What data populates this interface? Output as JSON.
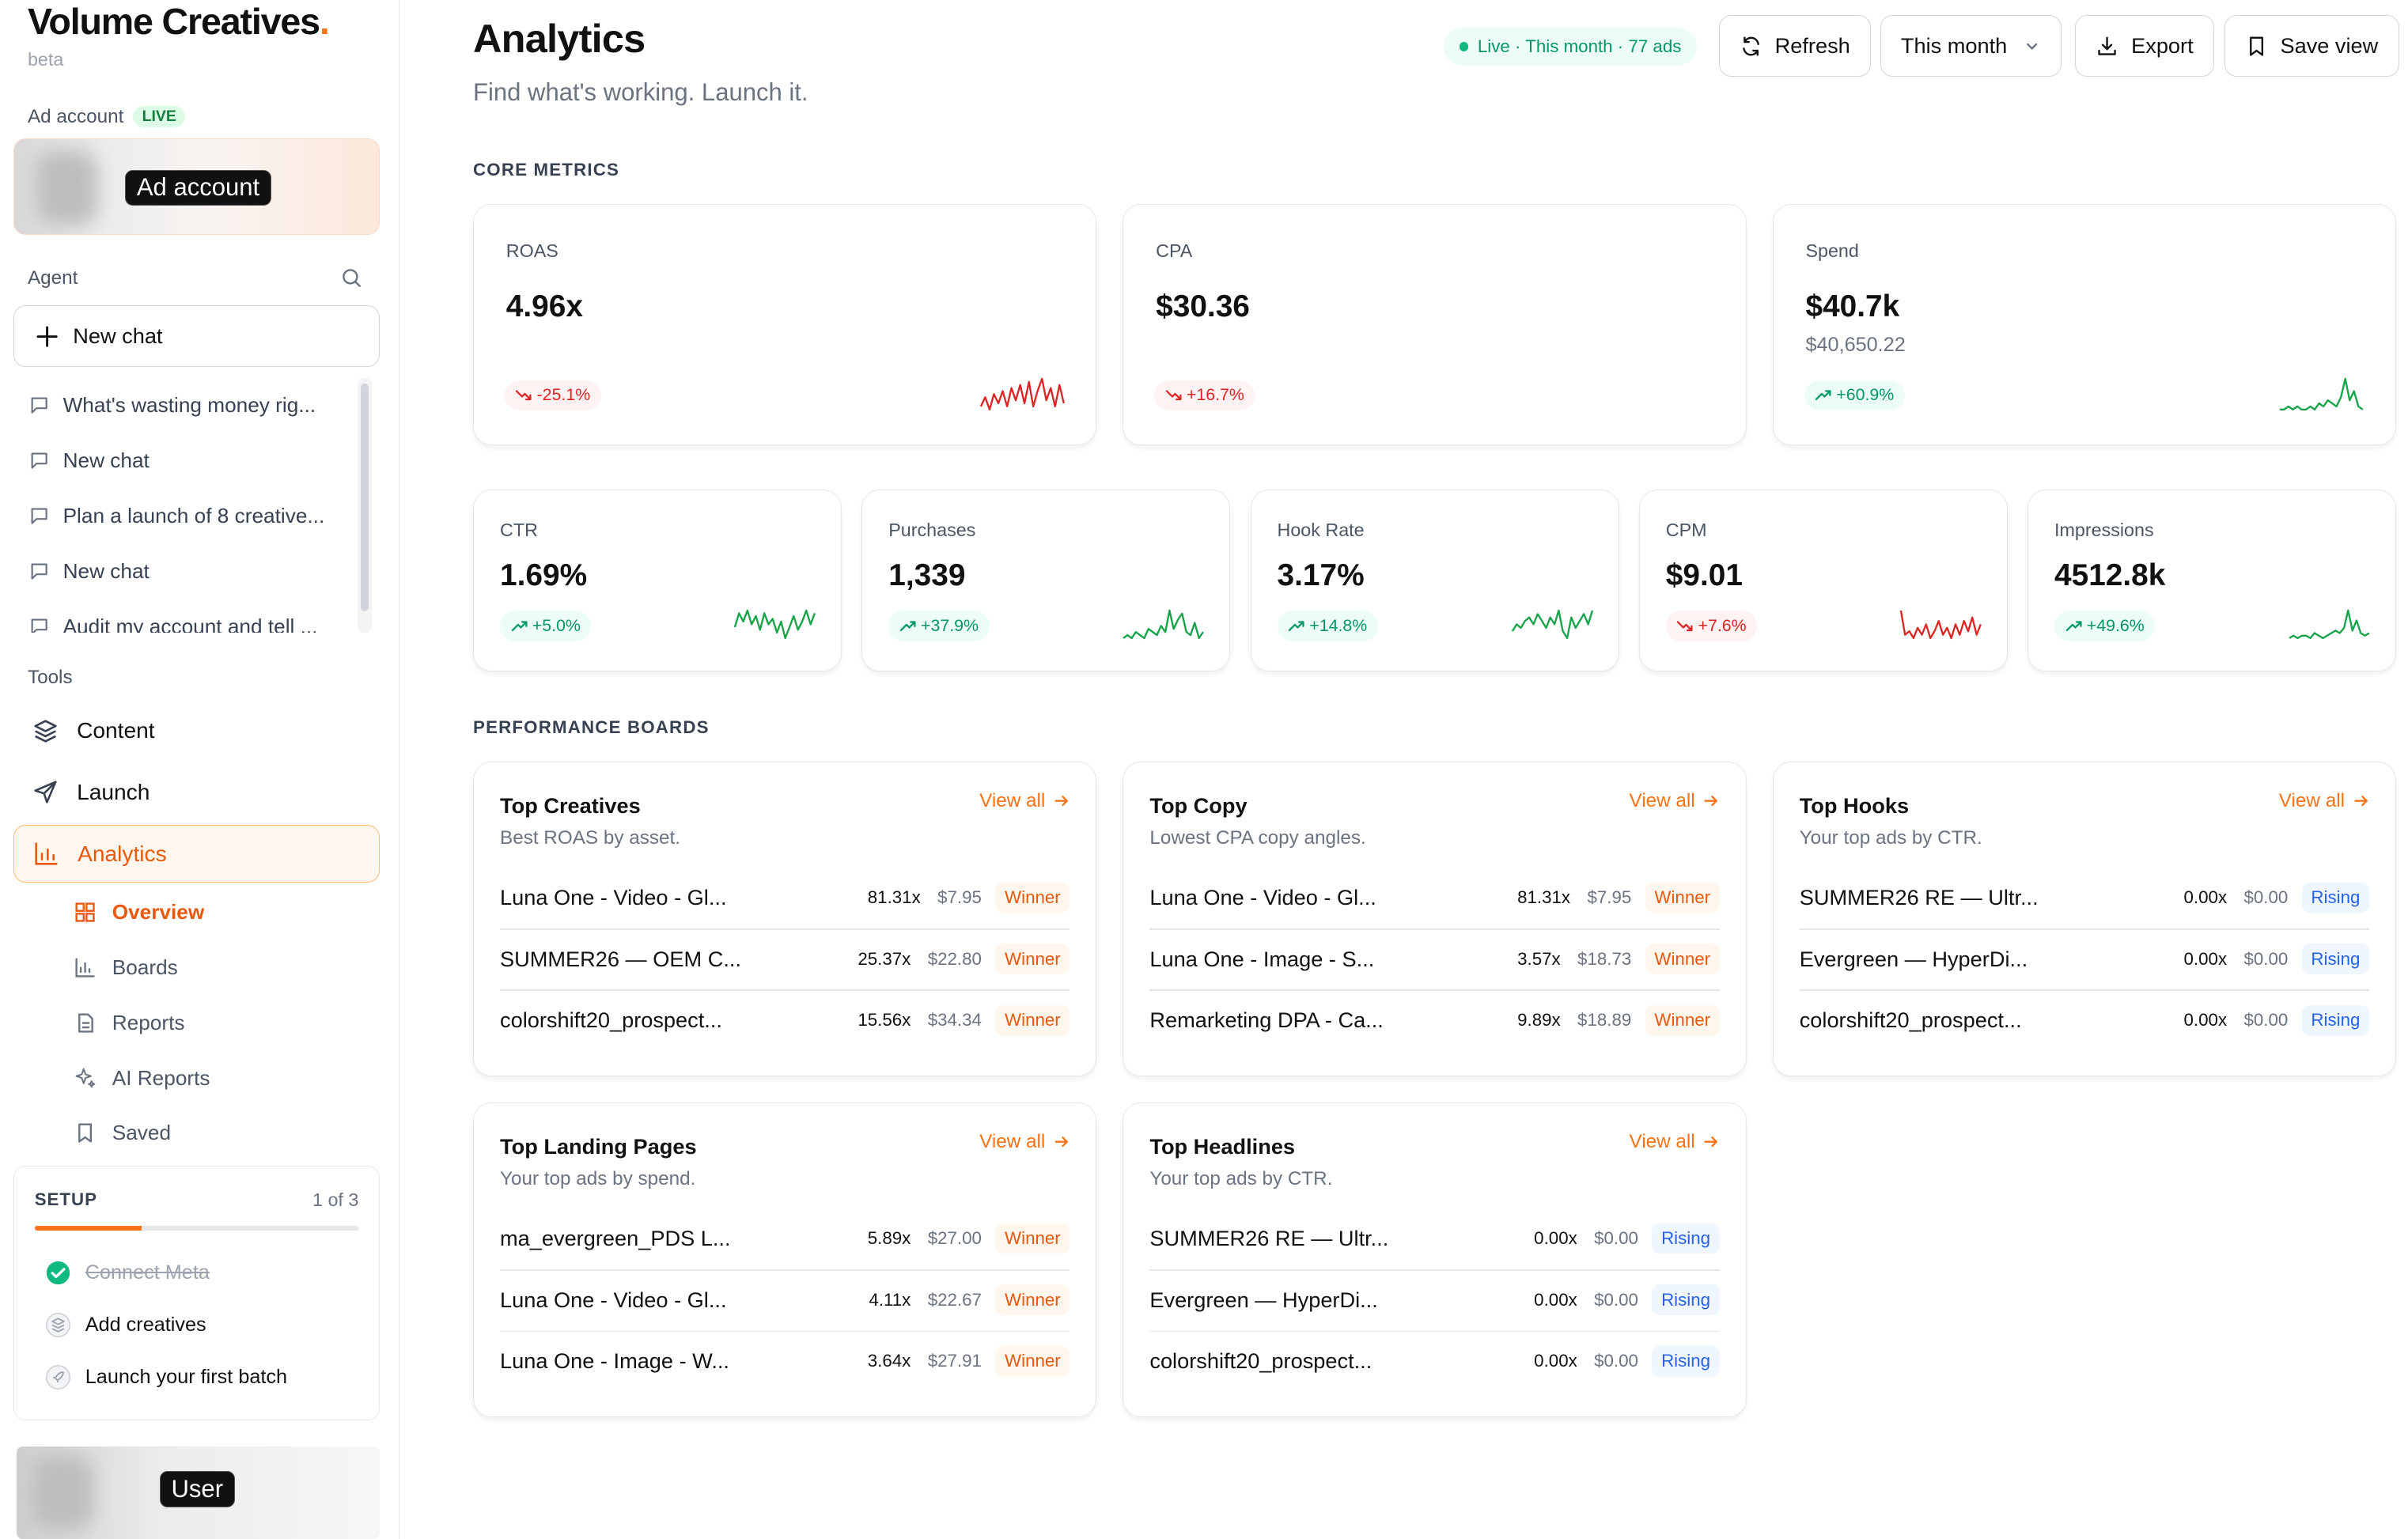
{
  "brand": {
    "name": "Volume Creatives",
    "dot": ".",
    "beta": "beta"
  },
  "sidebar": {
    "ad_account_label": "Ad account",
    "live_label": "LIVE",
    "ad_account_tag": "Ad account",
    "agent_label": "Agent",
    "new_chat": "New chat",
    "chats": [
      "What's wasting money rig...",
      "New chat",
      "Plan a launch of 8 creative...",
      "New chat",
      "Audit my account and tell ..."
    ],
    "tools_label": "Tools",
    "tools": [
      "Content",
      "Launch",
      "Analytics"
    ],
    "analytics_sub": [
      "Overview",
      "Boards",
      "Reports",
      "AI Reports",
      "Saved"
    ],
    "setup": {
      "title": "SETUP",
      "count": "1 of 3",
      "progress": 0.33,
      "steps": [
        "Connect Meta",
        "Add creatives",
        "Launch your first batch"
      ]
    },
    "user_tag": "User"
  },
  "header": {
    "title": "Analytics",
    "subtitle": "Find what's working. Launch it.",
    "live_pill": "Live · This month · 77 ads",
    "refresh": "Refresh",
    "range": "This month",
    "export": "Export",
    "save_view": "Save view"
  },
  "core_metrics_label": "CORE METRICS",
  "metrics_top": [
    {
      "label": "ROAS",
      "value": "4.96x",
      "sub": "",
      "delta": "-25.1%",
      "trend": "bad",
      "color": "#dc2626",
      "spark": [
        4,
        7,
        3,
        8,
        5,
        9,
        4,
        10,
        6,
        11,
        5,
        12,
        4,
        9,
        13,
        6,
        10,
        4,
        11,
        5
      ]
    },
    {
      "label": "CPA",
      "value": "$30.36",
      "sub": "",
      "delta": "+16.7%",
      "trend": "bad",
      "color": "#dc2626",
      "spark": []
    },
    {
      "label": "Spend",
      "value": "$40.7k",
      "sub": "$40,650.22",
      "delta": "+60.9%",
      "trend": "up",
      "color": "#16a34a",
      "spark": [
        2,
        2,
        3,
        2,
        3,
        2,
        2,
        3,
        2,
        4,
        3,
        5,
        4,
        3,
        6,
        12,
        5,
        8,
        3,
        2
      ]
    }
  ],
  "metrics_bottom": [
    {
      "label": "CTR",
      "value": "1.69%",
      "delta": "+5.0%",
      "trend": "up",
      "color": "#16a34a",
      "spark": [
        8,
        13,
        10,
        14,
        9,
        12,
        7,
        13,
        9,
        11,
        6,
        10,
        4,
        8,
        12,
        7,
        10,
        14,
        9,
        13
      ]
    },
    {
      "label": "Purchases",
      "value": "1,339",
      "delta": "+37.9%",
      "trend": "up",
      "color": "#16a34a",
      "spark": [
        3,
        4,
        3,
        5,
        4,
        3,
        6,
        5,
        4,
        7,
        5,
        12,
        6,
        9,
        11,
        5,
        4,
        8,
        3,
        5
      ]
    },
    {
      "label": "Hook Rate",
      "value": "3.17%",
      "delta": "+14.8%",
      "trend": "up",
      "color": "#16a34a",
      "spark": [
        8,
        10,
        9,
        11,
        12,
        10,
        13,
        11,
        9,
        12,
        10,
        14,
        8,
        6,
        12,
        9,
        11,
        13,
        10,
        14
      ]
    },
    {
      "label": "CPM",
      "value": "$9.01",
      "delta": "+7.6%",
      "trend": "bad",
      "color": "#dc2626",
      "spark": [
        12,
        5,
        6,
        4,
        7,
        5,
        8,
        4,
        6,
        9,
        5,
        7,
        4,
        8,
        5,
        9,
        6,
        10,
        5,
        8
      ]
    },
    {
      "label": "Impressions",
      "value": "4512.8k",
      "delta": "+49.6%",
      "trend": "up",
      "color": "#16a34a",
      "spark": [
        2,
        3,
        2,
        3,
        3,
        2,
        4,
        3,
        2,
        3,
        4,
        5,
        4,
        6,
        13,
        5,
        9,
        4,
        3,
        4
      ]
    }
  ],
  "boards_label": "PERFORMANCE BOARDS",
  "view_all": "View all",
  "boards": [
    {
      "title": "Top Creatives",
      "sub": "Best ROAS by asset.",
      "rows": [
        {
          "name": "Luna One - Video - Gl...",
          "metric": "81.31x",
          "cost": "$7.95",
          "tag": "Winner"
        },
        {
          "name": "SUMMER26 — OEM C...",
          "metric": "25.37x",
          "cost": "$22.80",
          "tag": "Winner"
        },
        {
          "name": "colorshift20_prospect...",
          "metric": "15.56x",
          "cost": "$34.34",
          "tag": "Winner"
        }
      ]
    },
    {
      "title": "Top Copy",
      "sub": "Lowest CPA copy angles.",
      "rows": [
        {
          "name": "Luna One - Video - Gl...",
          "metric": "81.31x",
          "cost": "$7.95",
          "tag": "Winner"
        },
        {
          "name": "Luna One - Image - S...",
          "metric": "3.57x",
          "cost": "$18.73",
          "tag": "Winner"
        },
        {
          "name": "Remarketing DPA - Ca...",
          "metric": "9.89x",
          "cost": "$18.89",
          "tag": "Winner"
        }
      ]
    },
    {
      "title": "Top Hooks",
      "sub": "Your top ads by CTR.",
      "rows": [
        {
          "name": "SUMMER26 RE — Ultr...",
          "metric": "0.00x",
          "cost": "$0.00",
          "tag": "Rising"
        },
        {
          "name": "Evergreen — HyperDi...",
          "metric": "0.00x",
          "cost": "$0.00",
          "tag": "Rising"
        },
        {
          "name": "colorshift20_prospect...",
          "metric": "0.00x",
          "cost": "$0.00",
          "tag": "Rising"
        }
      ]
    },
    {
      "title": "Top Landing Pages",
      "sub": "Your top ads by spend.",
      "rows": [
        {
          "name": "ma_evergreen_PDS L...",
          "metric": "5.89x",
          "cost": "$27.00",
          "tag": "Winner"
        },
        {
          "name": "Luna One - Video - Gl...",
          "metric": "4.11x",
          "cost": "$22.67",
          "tag": "Winner"
        },
        {
          "name": "Luna One - Image - W...",
          "metric": "3.64x",
          "cost": "$27.91",
          "tag": "Winner"
        }
      ]
    },
    {
      "title": "Top Headlines",
      "sub": "Your top ads by CTR.",
      "rows": [
        {
          "name": "SUMMER26 RE — Ultr...",
          "metric": "0.00x",
          "cost": "$0.00",
          "tag": "Rising"
        },
        {
          "name": "Evergreen — HyperDi...",
          "metric": "0.00x",
          "cost": "$0.00",
          "tag": "Rising"
        },
        {
          "name": "colorshift20_prospect...",
          "metric": "0.00x",
          "cost": "$0.00",
          "tag": "Rising"
        }
      ]
    }
  ]
}
